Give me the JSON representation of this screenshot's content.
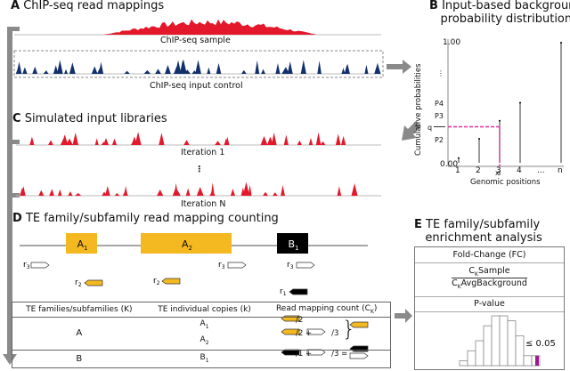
{
  "panels": {
    "A": {
      "letter": "A",
      "title": "ChIP-seq read mappings",
      "sample_label": "ChIP-seq sample",
      "control_label": "ChIP-seq input control"
    },
    "B": {
      "letter": "B",
      "title_line1": "Input-based background",
      "title_line2": "probability distribution"
    },
    "C": {
      "letter": "C",
      "title": "Simulated input libraries",
      "iter1_label": "Iteration 1",
      "ellipsis": "⋮",
      "iterN_label": "Iteration N"
    },
    "D": {
      "letter": "D",
      "title": "TE family/subfamily read mapping counting",
      "elements": [
        {
          "name": "A",
          "sub": "1",
          "color": "#f4b920"
        },
        {
          "name": "A",
          "sub": "2",
          "color": "#f4b920"
        },
        {
          "name": "B",
          "sub": "1",
          "color": "#000000"
        }
      ],
      "reads": [
        "r3",
        "r2",
        "r2",
        "r3",
        "r3",
        "r1"
      ],
      "table": {
        "headers": [
          "TE families/subfamilies (K)",
          "TE individual copies (k)",
          "Read mapping count (C",
          "K",
          ")"
        ],
        "rows": [
          {
            "family": "A",
            "copies": [
              [
                "A",
                "1"
              ],
              [
                "A",
                "2"
              ]
            ],
            "counts": [
              "/2",
              "/2 +",
              "/3"
            ]
          },
          {
            "family": "B",
            "copies": [
              [
                "B",
                "1"
              ]
            ],
            "counts": [
              "/1 +",
              "/3 ="
            ]
          }
        ]
      }
    },
    "E": {
      "letter": "E",
      "title_line1": "TE family/subfamily",
      "title_line2": "enrichment analysis",
      "fc_header": "Fold-Change (FC)",
      "fc_num_sub": "K",
      "fc_num": "Sample",
      "fc_den_sub": "K",
      "fc_den": "AvgBackground",
      "pval_header": "P-value",
      "threshold": "≤ 0.05",
      "hist_values": [
        1,
        3,
        5,
        8,
        10,
        10,
        9,
        6,
        2,
        2
      ],
      "highlight_color": "#9b1a8c"
    }
  },
  "chart_data": {
    "type": "scatter",
    "title": "Input-based background probability distribution",
    "xlabel": "Genomic positions",
    "ylabel": "Cumulative probabilities",
    "x_ticks": [
      "1",
      "2",
      "3",
      "4",
      "...",
      "n"
    ],
    "y_ticks": [
      "0.00",
      "P2",
      "P3",
      "P4",
      "⋮",
      "1.00"
    ],
    "values": [
      0.04,
      0.2,
      0.35,
      0.5,
      null,
      1.0
    ],
    "q_value": 0.3,
    "q_label": "q",
    "x_marker": "x",
    "selected_position": "3",
    "ylim": [
      0,
      1
    ],
    "grid": false
  },
  "colors": {
    "sample": "#e3182b",
    "control": "#13306b",
    "te_a": "#f4b920",
    "te_b": "#000000",
    "arrow": "#8a8a8a",
    "dashed_q": "#e0309b"
  }
}
